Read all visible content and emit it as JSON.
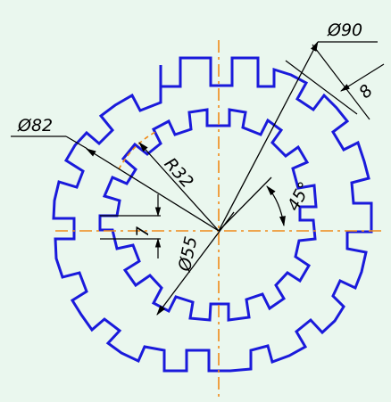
{
  "drawing": {
    "colors": {
      "background": "#eaf7ee",
      "outline": "#1a1adb",
      "dimension": "#000000",
      "centerline": "#f08a18"
    },
    "dimensions": {
      "outer_diameter": "Ø90",
      "slot_width": "8",
      "diameter_82": "Ø82",
      "radius_32": "R32",
      "angle_45": "45°",
      "key_width": "7",
      "inner_diameter": "Ø55"
    }
  }
}
